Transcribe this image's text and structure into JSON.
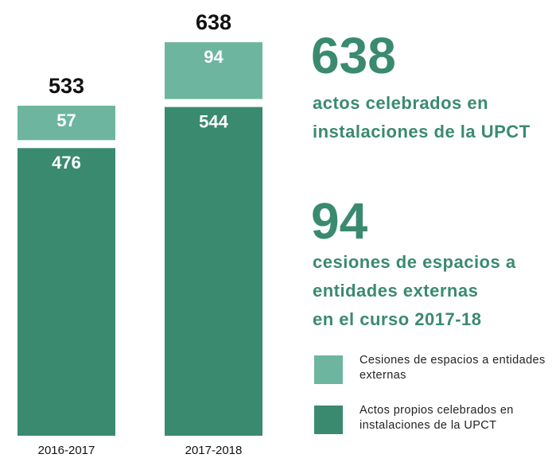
{
  "chart_data": {
    "type": "stacked_bar",
    "categories": [
      "2016-2017",
      "2017-2018"
    ],
    "series": [
      {
        "name": "Actos propios celebrados en instalaciones de la UPCT",
        "color": "#3a8a70",
        "values": [
          476,
          544
        ]
      },
      {
        "name": "Cesiones de espacios a entidades externas",
        "color": "#6db59e",
        "values": [
          57,
          94
        ]
      }
    ],
    "totals": [
      533,
      638
    ],
    "annotations": [
      {
        "big": "638",
        "lines": [
          "actos celebrados en",
          "instalaciones de la UPCT"
        ]
      },
      {
        "big": "94",
        "lines": [
          "cesiones de espacios a",
          "entidades externas",
          "en el curso 2017-18"
        ]
      }
    ]
  }
}
